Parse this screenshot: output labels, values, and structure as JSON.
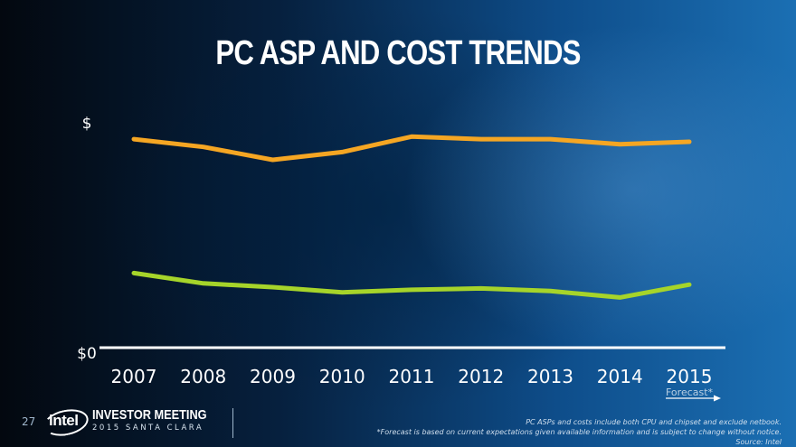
{
  "slide": {
    "title": "PC ASP AND COST TRENDS",
    "page_number": "27",
    "logo_text": "intel",
    "event_title": "INVESTOR MEETING",
    "event_subtitle": "2015 SANTA CLARA",
    "footnote_1": "PC ASPs and costs include both CPU and chipset and exclude netbook.",
    "footnote_2": "*Forecast is based on current expectations given available information and is subject to change without notice.",
    "footnote_3": "Source: Intel"
  },
  "colors": {
    "asp_line": "#f5a623",
    "cost_line": "#a6d42a",
    "axis": "#ffffff",
    "text": "#ffffff"
  },
  "chart_data": {
    "type": "line",
    "title": "PC ASP AND COST TRENDS",
    "x": [
      "2007",
      "2008",
      "2009",
      "2010",
      "2011",
      "2012",
      "2013",
      "2014",
      "2015"
    ],
    "y_tick_labels": [
      "$0",
      "$"
    ],
    "ylim": [
      0,
      100
    ],
    "grid": false,
    "legend": "none",
    "series": [
      {
        "values": [
          81,
          78,
          73,
          76,
          82,
          81,
          81,
          79,
          80
        ]
      },
      {
        "values": [
          29,
          25,
          23.5,
          21.5,
          22.5,
          23,
          22,
          19.5,
          24.5
        ]
      }
    ],
    "annotation": "Forecast*",
    "annotation_applies_to": "2015"
  }
}
